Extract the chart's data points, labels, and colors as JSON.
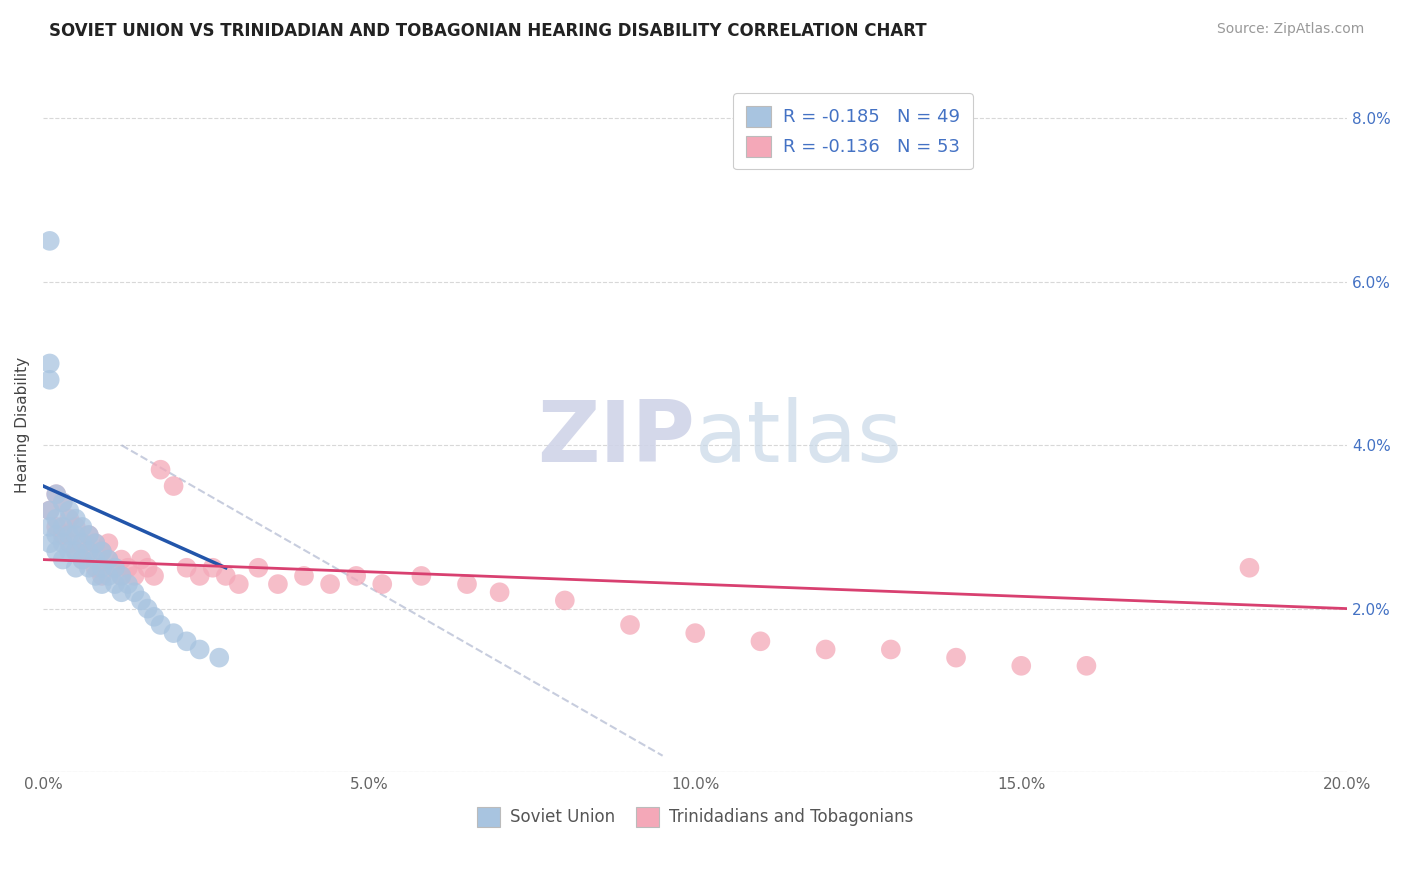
{
  "title": "SOVIET UNION VS TRINIDADIAN AND TOBAGONIAN HEARING DISABILITY CORRELATION CHART",
  "source": "Source: ZipAtlas.com",
  "ylabel": "Hearing Disability",
  "xlim": [
    0.0,
    0.2
  ],
  "ylim": [
    0.0,
    0.085
  ],
  "xticks": [
    0.0,
    0.05,
    0.1,
    0.15,
    0.2
  ],
  "xtick_labels": [
    "0.0%",
    "5.0%",
    "10.0%",
    "15.0%",
    "20.0%"
  ],
  "yticks": [
    0.0,
    0.02,
    0.04,
    0.06,
    0.08
  ],
  "ytick_labels": [
    "",
    "2.0%",
    "4.0%",
    "6.0%",
    "8.0%"
  ],
  "legend1_label": "R = -0.185   N = 49",
  "legend2_label": "R = -0.136   N = 53",
  "soviet_color": "#a8c4e0",
  "trinidad_color": "#f4a8b8",
  "soviet_line_color": "#2255aa",
  "trinidad_line_color": "#d84070",
  "diag_line_color": "#b0b8d0",
  "background_color": "#ffffff",
  "grid_color": "#d8d8d8",
  "soviet_x": [
    0.001,
    0.001,
    0.001,
    0.002,
    0.002,
    0.002,
    0.002,
    0.003,
    0.003,
    0.003,
    0.003,
    0.004,
    0.004,
    0.004,
    0.005,
    0.005,
    0.005,
    0.005,
    0.006,
    0.006,
    0.006,
    0.007,
    0.007,
    0.007,
    0.008,
    0.008,
    0.008,
    0.009,
    0.009,
    0.009,
    0.01,
    0.01,
    0.011,
    0.011,
    0.012,
    0.012,
    0.013,
    0.014,
    0.015,
    0.016,
    0.017,
    0.018,
    0.02,
    0.022,
    0.024,
    0.027,
    0.001,
    0.001,
    0.001
  ],
  "soviet_y": [
    0.03,
    0.032,
    0.028,
    0.034,
    0.031,
    0.029,
    0.027,
    0.033,
    0.03,
    0.028,
    0.026,
    0.032,
    0.029,
    0.027,
    0.031,
    0.029,
    0.027,
    0.025,
    0.03,
    0.028,
    0.026,
    0.029,
    0.027,
    0.025,
    0.028,
    0.026,
    0.024,
    0.027,
    0.025,
    0.023,
    0.026,
    0.024,
    0.025,
    0.023,
    0.024,
    0.022,
    0.023,
    0.022,
    0.021,
    0.02,
    0.019,
    0.018,
    0.017,
    0.016,
    0.015,
    0.014,
    0.065,
    0.05,
    0.048
  ],
  "trinidad_x": [
    0.001,
    0.002,
    0.002,
    0.003,
    0.003,
    0.004,
    0.004,
    0.005,
    0.005,
    0.006,
    0.006,
    0.007,
    0.007,
    0.008,
    0.008,
    0.009,
    0.009,
    0.01,
    0.01,
    0.011,
    0.012,
    0.012,
    0.013,
    0.014,
    0.015,
    0.016,
    0.017,
    0.018,
    0.02,
    0.022,
    0.024,
    0.026,
    0.028,
    0.03,
    0.033,
    0.036,
    0.04,
    0.044,
    0.048,
    0.052,
    0.058,
    0.065,
    0.07,
    0.08,
    0.09,
    0.1,
    0.11,
    0.12,
    0.13,
    0.14,
    0.15,
    0.16,
    0.185
  ],
  "trinidad_y": [
    0.032,
    0.03,
    0.034,
    0.029,
    0.033,
    0.028,
    0.031,
    0.027,
    0.03,
    0.028,
    0.026,
    0.029,
    0.027,
    0.028,
    0.025,
    0.027,
    0.024,
    0.026,
    0.028,
    0.025,
    0.026,
    0.024,
    0.025,
    0.024,
    0.026,
    0.025,
    0.024,
    0.037,
    0.035,
    0.025,
    0.024,
    0.025,
    0.024,
    0.023,
    0.025,
    0.023,
    0.024,
    0.023,
    0.024,
    0.023,
    0.024,
    0.023,
    0.022,
    0.021,
    0.018,
    0.017,
    0.016,
    0.015,
    0.015,
    0.014,
    0.013,
    0.013,
    0.025
  ],
  "soviet_line_x": [
    0.0,
    0.028
  ],
  "soviet_line_y": [
    0.035,
    0.025
  ],
  "trinidad_line_x": [
    0.0,
    0.2
  ],
  "trinidad_line_y": [
    0.026,
    0.02
  ],
  "diag_line_x": [
    0.012,
    0.095
  ],
  "diag_line_y": [
    0.04,
    0.002
  ]
}
